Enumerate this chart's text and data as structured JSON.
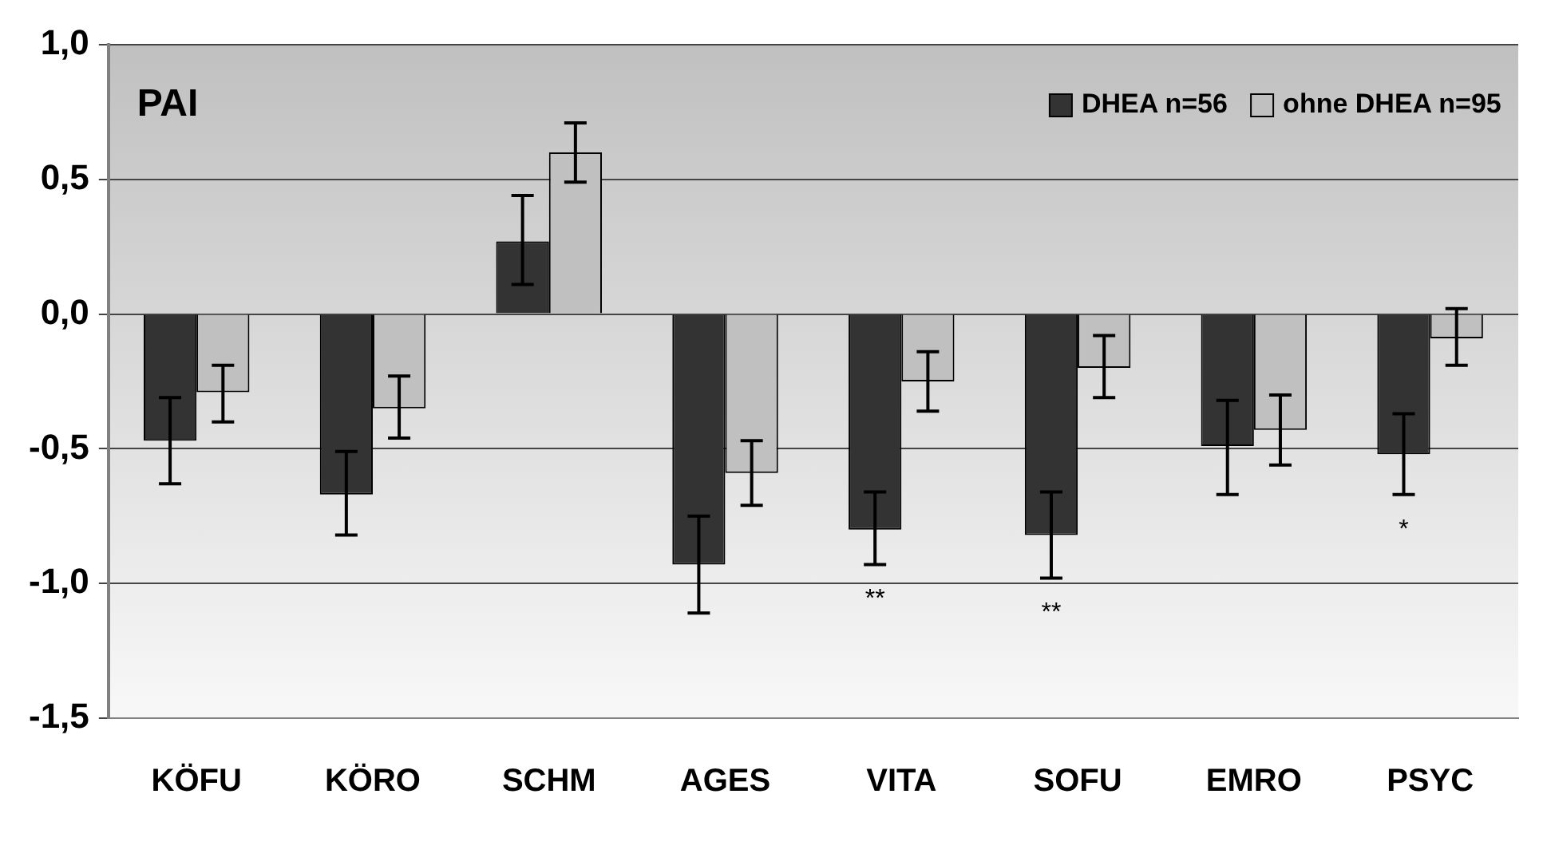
{
  "chart_data": {
    "type": "bar",
    "title": "PAI",
    "categories": [
      "KÖFU",
      "KÖRO",
      "SCHM",
      "AGES",
      "VITA",
      "SOFU",
      "EMRO",
      "PSYC"
    ],
    "series": [
      {
        "name": "DHEA n=56",
        "color": "#333333",
        "values": [
          -0.47,
          -0.67,
          0.27,
          -0.93,
          -0.8,
          -0.82,
          -0.49,
          -0.52
        ],
        "errors": [
          [
            -0.63,
            -0.31
          ],
          [
            -0.82,
            -0.51
          ],
          [
            0.11,
            0.44
          ],
          [
            -1.11,
            -0.75
          ],
          [
            -0.93,
            -0.66
          ],
          [
            -0.98,
            -0.66
          ],
          [
            -0.67,
            -0.32
          ],
          [
            -0.67,
            -0.37
          ]
        ],
        "value_labels": [
          null,
          null,
          null,
          null,
          "**",
          "**",
          null,
          "*"
        ]
      },
      {
        "name": "ohne DHEA n=95",
        "color": "#c0c0c0",
        "values": [
          -0.29,
          -0.35,
          0.6,
          -0.59,
          -0.25,
          -0.2,
          -0.43,
          -0.09
        ],
        "errors": [
          [
            -0.4,
            -0.19
          ],
          [
            -0.46,
            -0.23
          ],
          [
            0.49,
            0.71
          ],
          [
            -0.71,
            -0.47
          ],
          [
            -0.36,
            -0.14
          ],
          [
            -0.31,
            -0.08
          ],
          [
            -0.56,
            -0.3
          ],
          [
            -0.19,
            0.02
          ]
        ]
      }
    ],
    "ylim": [
      -1.5,
      1
    ],
    "yticks": [
      {
        "value": -1.5,
        "label": "-1,5"
      },
      {
        "value": -1,
        "label": "-1,0"
      },
      {
        "value": -0.5,
        "label": "-0,5"
      },
      {
        "value": 0,
        "label": "0,0"
      },
      {
        "value": 0.5,
        "label": "0,5"
      },
      {
        "value": 1,
        "label": "1,0"
      }
    ],
    "grid": "y",
    "legend": "top right"
  }
}
